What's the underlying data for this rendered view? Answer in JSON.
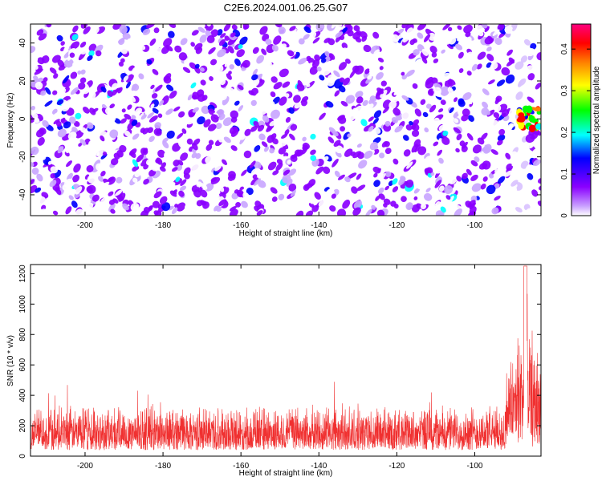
{
  "title": "C2E6.2024.001.06.25.G07",
  "chart_data": [
    {
      "type": "heatmap",
      "xlabel": "Height of straight line (km)",
      "ylabel": "Frequency (Hz)",
      "xlim": [
        -214,
        -83
      ],
      "ylim": [
        -51,
        50
      ],
      "xticks": [
        -200,
        -180,
        -160,
        -140,
        -120,
        -100
      ],
      "yticks": [
        -40,
        -20,
        0,
        20,
        40
      ],
      "colorbar": {
        "label": "Normalized spectral amplitude",
        "range": [
          0,
          0.46
        ],
        "ticks": [
          0,
          0.1,
          0.2,
          0.3,
          0.4
        ],
        "colormap": [
          "#ffffff",
          "#8a00ff",
          "#0000ff",
          "#00ffff",
          "#00ff00",
          "#ffff00",
          "#ff8000",
          "#ff0000",
          "#ff00a0"
        ]
      },
      "background_level": 0.08,
      "hotspot": {
        "x": -86,
        "y": 0,
        "peak": 0.45
      },
      "grid": false
    },
    {
      "type": "line",
      "xlabel": "Height of straight line (km)",
      "ylabel": "SNR (10 * v/v)",
      "xlim": [
        -214,
        -83
      ],
      "ylim": [
        0,
        1260
      ],
      "xticks": [
        -200,
        -180,
        -160,
        -140,
        -120,
        -100
      ],
      "yticks": [
        0,
        200,
        400,
        600,
        800,
        1000,
        1200
      ],
      "series": [
        {
          "color": "#f03030",
          "baseline_mean": 170,
          "baseline_range": [
            40,
            350
          ],
          "end_mean": 420,
          "peak": {
            "x": -87,
            "y": 1250
          }
        }
      ],
      "grid": false
    }
  ]
}
